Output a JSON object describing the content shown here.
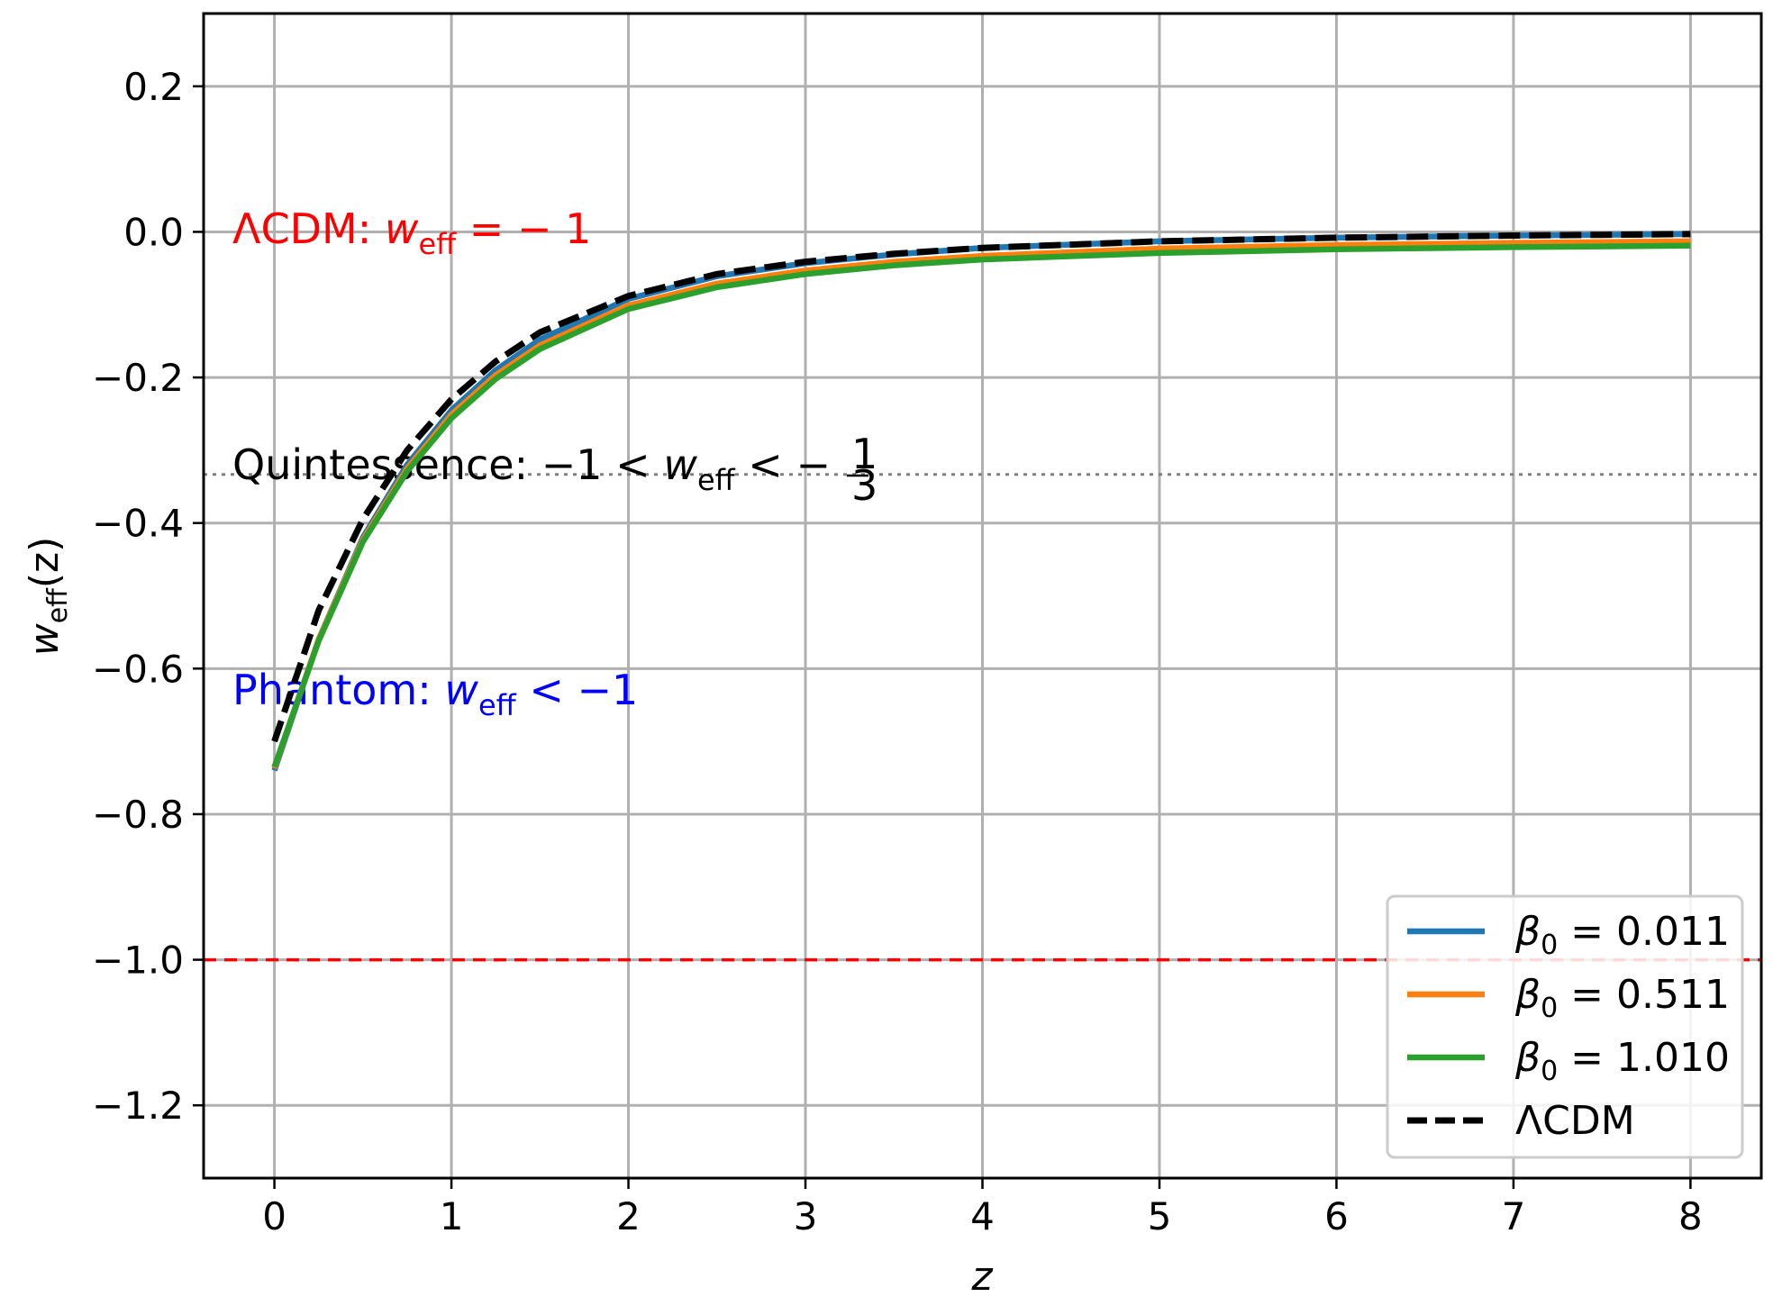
{
  "chart_data": {
    "type": "line",
    "xlabel": "z",
    "ylabel_main": "w",
    "ylabel_sub": "eff",
    "ylabel_tail": "(z)",
    "xlim": [
      -0.4,
      8.4
    ],
    "ylim": [
      -1.3,
      0.3
    ],
    "grid": true,
    "legend_position": "lower-right",
    "x_ticks": [
      0,
      1,
      2,
      3,
      4,
      5,
      6,
      7,
      8
    ],
    "x_tick_labels": [
      "0",
      "1",
      "2",
      "3",
      "4",
      "5",
      "6",
      "7",
      "8"
    ],
    "y_ticks": [
      0.2,
      0.0,
      -0.2,
      -0.4,
      -0.6,
      -0.8,
      -1.0,
      -1.2
    ],
    "y_tick_labels": [
      "0.2",
      "0.0",
      "−0.2",
      "−0.4",
      "−0.6",
      "−0.8",
      "−1.0",
      "−1.2"
    ],
    "x": [
      0,
      0.25,
      0.5,
      0.75,
      1.0,
      1.25,
      1.5,
      2.0,
      2.5,
      3.0,
      3.5,
      4.0,
      5.0,
      6.0,
      7.0,
      8.0
    ],
    "series": [
      {
        "name": "β₀ = 0.011",
        "legend_main": "β",
        "legend_sub": "0",
        "legend_tail": " = 0.011",
        "color": "#1f77b4",
        "style": "solid",
        "values": [
          -0.74,
          -0.56,
          -0.42,
          -0.32,
          -0.245,
          -0.19,
          -0.148,
          -0.092,
          -0.061,
          -0.043,
          -0.031,
          -0.022,
          -0.013,
          -0.008,
          -0.005,
          -0.003
        ]
      },
      {
        "name": "β₀ = 0.511",
        "legend_main": "β",
        "legend_sub": "0",
        "legend_tail": " = 0.511",
        "color": "#ff7f0e",
        "style": "solid",
        "values": [
          -0.737,
          -0.56,
          -0.423,
          -0.325,
          -0.251,
          -0.197,
          -0.156,
          -0.101,
          -0.071,
          -0.053,
          -0.041,
          -0.033,
          -0.023,
          -0.018,
          -0.015,
          -0.013
        ]
      },
      {
        "name": "β₀ = 1.010",
        "legend_main": "β",
        "legend_sub": "0",
        "legend_tail": " = 1.010",
        "color": "#2ca02c",
        "style": "solid",
        "values": [
          -0.735,
          -0.562,
          -0.426,
          -0.329,
          -0.256,
          -0.202,
          -0.161,
          -0.106,
          -0.076,
          -0.058,
          -0.046,
          -0.038,
          -0.029,
          -0.024,
          -0.021,
          -0.019
        ]
      },
      {
        "name": "ΛCDM",
        "legend_main": "ΛCDM",
        "legend_sub": "",
        "legend_tail": "",
        "color": "#000000",
        "style": "dashed",
        "values": [
          -0.7,
          -0.52,
          -0.395,
          -0.3,
          -0.23,
          -0.178,
          -0.138,
          -0.088,
          -0.058,
          -0.041,
          -0.03,
          -0.022,
          -0.013,
          -0.008,
          -0.005,
          -0.003
        ]
      }
    ],
    "reference_lines": [
      {
        "y": -1.0,
        "color": "#ff0000",
        "style": "dashed"
      },
      {
        "y": -0.3333,
        "color": "#808080",
        "style": "dotted"
      }
    ],
    "annotations": {
      "lcdm": {
        "prefix": "ΛCDM: ",
        "w": "w",
        "sub": "eff",
        "tail": " = − 1",
        "color": "#ff0000"
      },
      "quint": {
        "prefix": "Quintessence: −1 < ",
        "w": "w",
        "sub": "eff",
        "tail": " < −",
        "frac_num": "1",
        "frac_den": "3",
        "color": "#000000"
      },
      "phantom": {
        "prefix": "Phantom: ",
        "w": "w",
        "sub": "eff",
        "tail": " < −1",
        "color": "#0000ff"
      }
    }
  }
}
